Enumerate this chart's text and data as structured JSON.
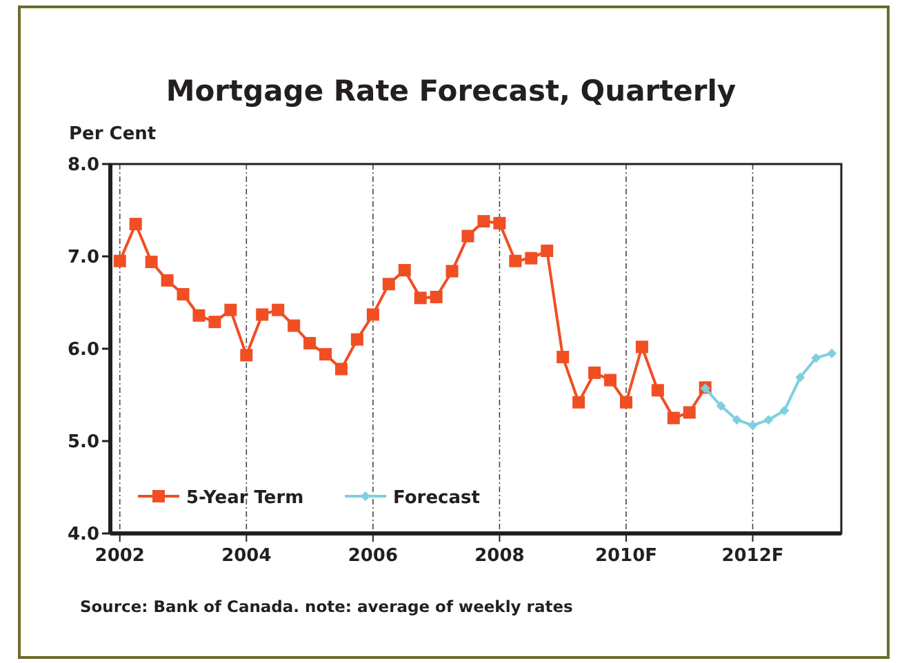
{
  "chart_data": {
    "type": "line",
    "title": "Mortgage Rate Forecast, Quarterly",
    "ylabel": "Per Cent",
    "annotations": [
      "Source: Bank of Canada. note: average of weekly rates"
    ],
    "xlim": [
      2001.85,
      2013.4
    ],
    "xticks": [
      2002,
      2004,
      2006,
      2008,
      {
        "value": 2010,
        "label": "2010F"
      },
      {
        "value": 2012,
        "label": "2012F"
      }
    ],
    "ylim": [
      4,
      8
    ],
    "yticks": [
      {
        "value": 4,
        "label": "4.0"
      },
      {
        "value": 5,
        "label": "5.0"
      },
      {
        "value": 6,
        "label": "6.0"
      },
      {
        "value": 7,
        "label": "7.0"
      },
      {
        "value": 8,
        "label": "8.0"
      }
    ],
    "grid": "x",
    "legend": "bottom left",
    "series": [
      {
        "name": "5-Year Term",
        "color": "#f04e23",
        "marker": "square",
        "x": [
          2002,
          2002.25,
          2002.5,
          2002.75,
          2003,
          2003.25,
          2003.5,
          2003.75,
          2004,
          2004.25,
          2004.5,
          2004.75,
          2005,
          2005.25,
          2005.5,
          2005.75,
          2006,
          2006.25,
          2006.5,
          2006.75,
          2007,
          2007.25,
          2007.5,
          2007.75,
          2008,
          2008.25,
          2008.5,
          2008.75,
          2009,
          2009.25,
          2009.5,
          2009.75,
          2010,
          2010.25,
          2010.5,
          2010.75,
          2011,
          2011.25
        ],
        "values": [
          6.95,
          7.35,
          6.94,
          6.74,
          6.59,
          6.36,
          6.29,
          6.42,
          5.93,
          6.37,
          6.42,
          6.25,
          6.06,
          5.94,
          5.78,
          6.1,
          6.37,
          6.7,
          6.85,
          6.55,
          6.56,
          6.84,
          7.22,
          7.38,
          7.36,
          6.95,
          6.98,
          7.06,
          5.91,
          5.42,
          5.74,
          5.66,
          5.42,
          6.02,
          5.55,
          5.25,
          5.31,
          5.58
        ]
      },
      {
        "name": "Forecast",
        "color": "#7fcfe0",
        "marker": "diamond",
        "x": [
          2011.25,
          2011.5,
          2011.75,
          2012,
          2012.25,
          2012.5,
          2012.75,
          2013,
          2013.25
        ],
        "values": [
          5.57,
          5.38,
          5.23,
          5.17,
          5.23,
          5.33,
          5.69,
          5.9,
          5.95
        ]
      }
    ]
  }
}
